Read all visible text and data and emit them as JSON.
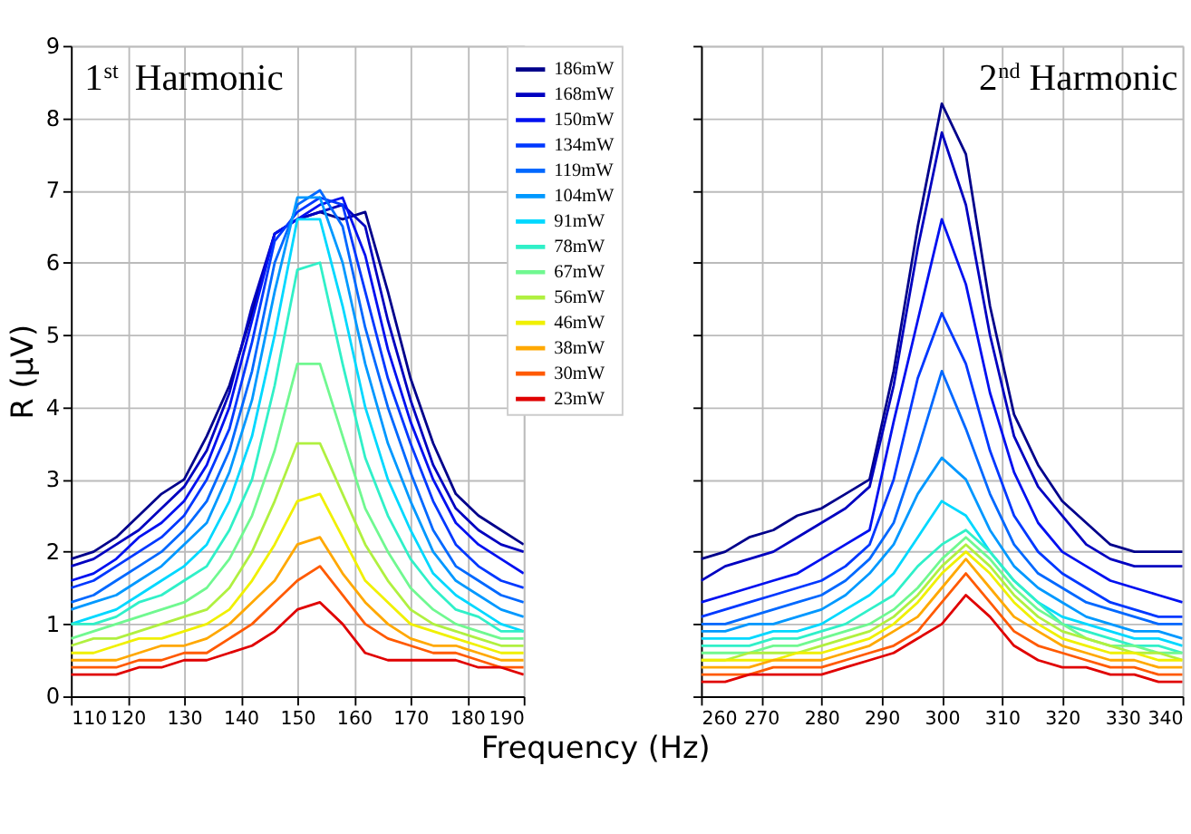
{
  "chart_data": [
    {
      "type": "line",
      "title": "1$^{st}$ Harmonic",
      "xlabel": "Frequency (Hz)",
      "ylabel": "R (μV)",
      "xlim": [
        110,
        190
      ],
      "xticks": [
        110,
        120,
        130,
        140,
        150,
        160,
        170,
        180,
        190
      ],
      "ylim": [
        0,
        9
      ],
      "yticks": [
        0,
        1,
        2,
        3,
        4,
        5,
        6,
        7,
        8,
        9
      ],
      "grid": true,
      "legend": "top right",
      "x": [
        110,
        114,
        118,
        122,
        126,
        130,
        134,
        138,
        142,
        146,
        150,
        154,
        158,
        162,
        166,
        170,
        174,
        178,
        182,
        186,
        190
      ],
      "series": [
        {
          "name": "186mW",
          "color": "#00008b",
          "values": [
            1.9,
            2.0,
            2.2,
            2.5,
            2.8,
            3.0,
            3.6,
            4.3,
            5.3,
            6.4,
            6.6,
            6.7,
            6.6,
            6.7,
            5.6,
            4.4,
            3.5,
            2.8,
            2.5,
            2.3,
            2.1
          ]
        },
        {
          "name": "168mW",
          "color": "#0000c0",
          "values": [
            1.8,
            1.9,
            2.1,
            2.3,
            2.6,
            2.9,
            3.4,
            4.2,
            5.4,
            6.4,
            6.6,
            6.7,
            6.8,
            6.5,
            5.2,
            4.1,
            3.2,
            2.6,
            2.3,
            2.1,
            2.0
          ]
        },
        {
          "name": "150mW",
          "color": "#0010f0",
          "values": [
            1.6,
            1.7,
            1.9,
            2.2,
            2.4,
            2.7,
            3.2,
            4.0,
            5.2,
            6.4,
            6.6,
            6.8,
            6.9,
            6.1,
            4.8,
            3.8,
            3.0,
            2.4,
            2.1,
            1.9,
            1.7
          ]
        },
        {
          "name": "134mW",
          "color": "#0038ff",
          "values": [
            1.5,
            1.6,
            1.8,
            2.0,
            2.2,
            2.5,
            3.0,
            3.7,
            4.9,
            6.3,
            6.7,
            6.9,
            6.8,
            5.6,
            4.4,
            3.5,
            2.7,
            2.1,
            1.8,
            1.6,
            1.5
          ]
        },
        {
          "name": "119mW",
          "color": "#0068ff",
          "values": [
            1.3,
            1.4,
            1.6,
            1.8,
            2.0,
            2.3,
            2.7,
            3.4,
            4.5,
            6.0,
            6.8,
            7.0,
            6.5,
            5.1,
            4.0,
            3.1,
            2.3,
            1.8,
            1.6,
            1.4,
            1.3
          ]
        },
        {
          "name": "104mW",
          "color": "#0098ff",
          "values": [
            1.2,
            1.3,
            1.4,
            1.6,
            1.8,
            2.1,
            2.4,
            3.1,
            4.1,
            5.6,
            6.9,
            6.9,
            6.0,
            4.6,
            3.5,
            2.7,
            2.0,
            1.6,
            1.4,
            1.2,
            1.1
          ]
        },
        {
          "name": "91mW",
          "color": "#00d8ff",
          "values": [
            1.0,
            1.1,
            1.2,
            1.4,
            1.6,
            1.8,
            2.1,
            2.7,
            3.6,
            5.0,
            6.6,
            6.6,
            5.4,
            4.0,
            3.0,
            2.3,
            1.7,
            1.4,
            1.2,
            1.0,
            0.9
          ]
        },
        {
          "name": "78mW",
          "color": "#30f0c8",
          "values": [
            1.0,
            1.0,
            1.1,
            1.3,
            1.4,
            1.6,
            1.8,
            2.3,
            3.0,
            4.3,
            5.9,
            6.0,
            4.6,
            3.3,
            2.5,
            1.9,
            1.5,
            1.2,
            1.1,
            0.9,
            0.9
          ]
        },
        {
          "name": "67mW",
          "color": "#70f890",
          "values": [
            0.8,
            0.9,
            1.0,
            1.1,
            1.2,
            1.3,
            1.5,
            1.9,
            2.5,
            3.4,
            4.6,
            4.6,
            3.6,
            2.6,
            2.0,
            1.5,
            1.2,
            1.0,
            0.9,
            0.8,
            0.8
          ]
        },
        {
          "name": "56mW",
          "color": "#b0f040",
          "values": [
            0.7,
            0.8,
            0.8,
            0.9,
            1.0,
            1.1,
            1.2,
            1.5,
            2.0,
            2.7,
            3.5,
            3.5,
            2.8,
            2.1,
            1.6,
            1.2,
            1.0,
            0.9,
            0.8,
            0.7,
            0.7
          ]
        },
        {
          "name": "46mW",
          "color": "#f0f000",
          "values": [
            0.6,
            0.6,
            0.7,
            0.8,
            0.8,
            0.9,
            1.0,
            1.2,
            1.6,
            2.1,
            2.7,
            2.8,
            2.2,
            1.6,
            1.3,
            1.0,
            0.9,
            0.8,
            0.7,
            0.6,
            0.6
          ]
        },
        {
          "name": "38mW",
          "color": "#ffa800",
          "values": [
            0.5,
            0.5,
            0.5,
            0.6,
            0.7,
            0.7,
            0.8,
            1.0,
            1.3,
            1.6,
            2.1,
            2.2,
            1.7,
            1.3,
            1.0,
            0.8,
            0.7,
            0.7,
            0.6,
            0.5,
            0.5
          ]
        },
        {
          "name": "30mW",
          "color": "#ff5a00",
          "values": [
            0.4,
            0.4,
            0.4,
            0.5,
            0.5,
            0.6,
            0.6,
            0.8,
            1.0,
            1.3,
            1.6,
            1.8,
            1.4,
            1.0,
            0.8,
            0.7,
            0.6,
            0.6,
            0.5,
            0.4,
            0.4
          ]
        },
        {
          "name": "23mW",
          "color": "#e00000",
          "values": [
            0.3,
            0.3,
            0.3,
            0.4,
            0.4,
            0.5,
            0.5,
            0.6,
            0.7,
            0.9,
            1.2,
            1.3,
            1.0,
            0.6,
            0.5,
            0.5,
            0.5,
            0.5,
            0.4,
            0.4,
            0.3
          ]
        }
      ]
    },
    {
      "type": "line",
      "title": "2$^{nd}$ Harmonic",
      "xlim": [
        260,
        340
      ],
      "xticks": [
        260,
        270,
        280,
        290,
        300,
        310,
        320,
        330,
        340
      ],
      "ylim": [
        0,
        9
      ],
      "yticks": [
        0,
        1,
        2,
        3,
        4,
        5,
        6,
        7,
        8,
        9
      ],
      "grid": true,
      "tick_labels": "x",
      "x": [
        260,
        264,
        268,
        272,
        276,
        280,
        284,
        288,
        292,
        296,
        300,
        304,
        308,
        312,
        316,
        320,
        324,
        328,
        332,
        336,
        340
      ],
      "series": [
        {
          "color": "#00008b",
          "values": [
            1.9,
            2.0,
            2.2,
            2.3,
            2.5,
            2.6,
            2.8,
            3.0,
            4.5,
            6.5,
            8.2,
            7.5,
            5.4,
            3.9,
            3.2,
            2.7,
            2.4,
            2.1,
            2.0,
            2.0,
            2.0
          ]
        },
        {
          "color": "#0000c0",
          "values": [
            1.6,
            1.8,
            1.9,
            2.0,
            2.2,
            2.4,
            2.6,
            2.9,
            4.3,
            6.2,
            7.8,
            6.8,
            5.0,
            3.6,
            2.9,
            2.5,
            2.1,
            1.9,
            1.8,
            1.8,
            1.8
          ]
        },
        {
          "color": "#0010f0",
          "values": [
            1.3,
            1.4,
            1.5,
            1.6,
            1.7,
            1.9,
            2.1,
            2.3,
            3.8,
            5.2,
            6.6,
            5.7,
            4.2,
            3.1,
            2.4,
            2.0,
            1.8,
            1.6,
            1.5,
            1.4,
            1.3
          ]
        },
        {
          "color": "#0038ff",
          "values": [
            1.1,
            1.2,
            1.3,
            1.4,
            1.5,
            1.6,
            1.8,
            2.1,
            3.0,
            4.4,
            5.3,
            4.6,
            3.4,
            2.5,
            2.0,
            1.7,
            1.5,
            1.3,
            1.2,
            1.1,
            1.1
          ]
        },
        {
          "color": "#0068ff",
          "values": [
            1.0,
            1.0,
            1.1,
            1.2,
            1.3,
            1.4,
            1.6,
            1.9,
            2.4,
            3.4,
            4.5,
            3.7,
            2.8,
            2.1,
            1.7,
            1.5,
            1.3,
            1.2,
            1.1,
            1.0,
            1.0
          ]
        },
        {
          "color": "#0098ff",
          "values": [
            0.9,
            0.9,
            1.0,
            1.0,
            1.1,
            1.2,
            1.4,
            1.7,
            2.1,
            2.8,
            3.3,
            3.0,
            2.3,
            1.8,
            1.5,
            1.3,
            1.1,
            1.0,
            0.9,
            0.9,
            0.8
          ]
        },
        {
          "color": "#00d8ff",
          "values": [
            0.8,
            0.8,
            0.8,
            0.9,
            0.9,
            1.0,
            1.2,
            1.4,
            1.7,
            2.2,
            2.7,
            2.5,
            2.0,
            1.6,
            1.3,
            1.1,
            1.0,
            0.9,
            0.8,
            0.8,
            0.7
          ]
        },
        {
          "color": "#30f0c8",
          "values": [
            0.7,
            0.7,
            0.7,
            0.8,
            0.8,
            0.9,
            1.0,
            1.2,
            1.4,
            1.8,
            2.1,
            2.3,
            2.0,
            1.6,
            1.3,
            1.0,
            0.9,
            0.8,
            0.7,
            0.7,
            0.6
          ]
        },
        {
          "color": "#70f890",
          "values": [
            0.6,
            0.6,
            0.6,
            0.7,
            0.7,
            0.8,
            0.9,
            1.0,
            1.2,
            1.5,
            1.9,
            2.2,
            1.9,
            1.5,
            1.2,
            1.0,
            0.8,
            0.7,
            0.7,
            0.6,
            0.6
          ]
        },
        {
          "color": "#b0f040",
          "values": [
            0.5,
            0.5,
            0.6,
            0.6,
            0.6,
            0.7,
            0.8,
            0.9,
            1.1,
            1.4,
            1.8,
            2.1,
            1.8,
            1.4,
            1.1,
            0.9,
            0.8,
            0.7,
            0.6,
            0.6,
            0.5
          ]
        },
        {
          "color": "#f0f000",
          "values": [
            0.5,
            0.5,
            0.5,
            0.5,
            0.6,
            0.6,
            0.7,
            0.8,
            1.0,
            1.3,
            1.7,
            2.0,
            1.7,
            1.3,
            1.0,
            0.8,
            0.7,
            0.6,
            0.6,
            0.5,
            0.5
          ]
        },
        {
          "color": "#ffa800",
          "values": [
            0.4,
            0.4,
            0.4,
            0.5,
            0.5,
            0.5,
            0.6,
            0.7,
            0.9,
            1.1,
            1.5,
            1.9,
            1.5,
            1.1,
            0.9,
            0.7,
            0.6,
            0.5,
            0.5,
            0.4,
            0.4
          ]
        },
        {
          "color": "#ff5a00",
          "values": [
            0.3,
            0.3,
            0.3,
            0.4,
            0.4,
            0.4,
            0.5,
            0.6,
            0.7,
            0.9,
            1.3,
            1.7,
            1.3,
            0.9,
            0.7,
            0.6,
            0.5,
            0.4,
            0.4,
            0.3,
            0.3
          ]
        },
        {
          "color": "#e00000",
          "values": [
            0.2,
            0.2,
            0.3,
            0.3,
            0.3,
            0.3,
            0.4,
            0.5,
            0.6,
            0.8,
            1.0,
            1.4,
            1.1,
            0.7,
            0.5,
            0.4,
            0.4,
            0.3,
            0.3,
            0.2,
            0.2
          ]
        }
      ]
    }
  ]
}
